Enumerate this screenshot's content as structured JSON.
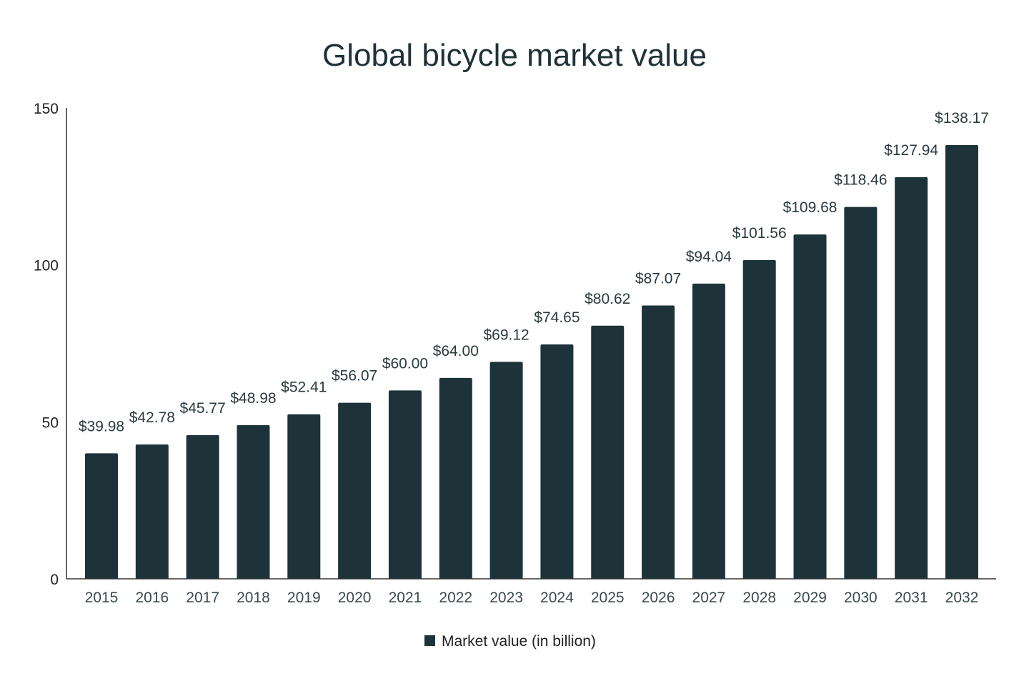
{
  "chart_data": {
    "type": "bar",
    "title": "Global bicycle market value",
    "xlabel": "",
    "ylabel": "",
    "ylim": [
      0,
      150
    ],
    "yticks": [
      0,
      50,
      100,
      150
    ],
    "grid": false,
    "legend_position": "bottom",
    "bar_color": "#1d3339",
    "categories": [
      "2015",
      "2016",
      "2017",
      "2018",
      "2019",
      "2020",
      "2021",
      "2022",
      "2023",
      "2024",
      "2025",
      "2026",
      "2027",
      "2028",
      "2029",
      "2030",
      "2031",
      "2032"
    ],
    "series": [
      {
        "name": "Market value (in billion)",
        "values": [
          39.98,
          42.78,
          45.77,
          48.98,
          52.41,
          56.07,
          60.0,
          64.0,
          69.12,
          74.65,
          80.62,
          87.07,
          94.04,
          101.56,
          109.68,
          118.46,
          127.94,
          138.17
        ],
        "labels": [
          "$39.98",
          "$42.78",
          "$45.77",
          "$48.98",
          "$52.41",
          "$56.07",
          "$60.00",
          "$64.00",
          "$69.12",
          "$74.65",
          "$80.62",
          "$87.07",
          "$94.04",
          "$101.56",
          "$109.68",
          "$118.46",
          "$127.94",
          "$138.17"
        ]
      }
    ]
  }
}
